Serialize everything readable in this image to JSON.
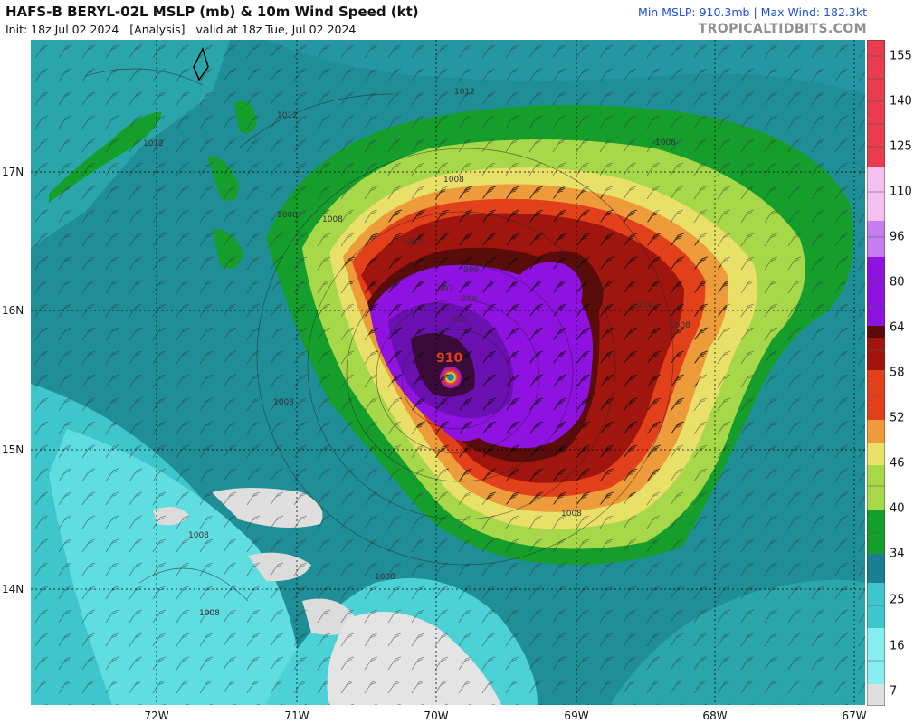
{
  "header": {
    "title": "HAFS-B BERYL-02L MSLP (mb) & 10m Wind Speed (kt)",
    "init_line": "Init: 18z Jul 02 2024   [Analysis]   valid at 18z Tue, Jul 02 2024",
    "stats": "Min MSLP: 910.3mb | Max Wind: 182.3kt",
    "site": "TROPICALTIDBITS.COM"
  },
  "map": {
    "lon_labels": [
      "72W",
      "71W",
      "70W",
      "69W",
      "68W",
      "67W"
    ],
    "lat_labels": [
      "17N",
      "16N",
      "15N",
      "14N"
    ],
    "center_pressure_label": "910",
    "isobar_labels": [
      "1012",
      "1012",
      "1012",
      "1008",
      "1008",
      "1008",
      "1008",
      "1008",
      "1008",
      "1004",
      "1004",
      "1008",
      "1008",
      "1008",
      "1008",
      "996",
      "992",
      "988",
      "980"
    ]
  },
  "colorbar": {
    "ticks": [
      "155",
      "140",
      "125",
      "110",
      "96",
      "80",
      "64",
      "58",
      "52",
      "46",
      "40",
      "34",
      "25",
      "16",
      "7"
    ],
    "colors": [
      "#dfdfdf",
      "#86eef0",
      "#3fc6cc",
      "#1a7f92",
      "#159e2c",
      "#a6d84a",
      "#e9e06a",
      "#ee9b3c",
      "#e2401a",
      "#a0150e",
      "#5a0c0a",
      "#8e12e0",
      "#c77cf0",
      "#f4c0f2",
      "#ea3c4f"
    ]
  }
}
